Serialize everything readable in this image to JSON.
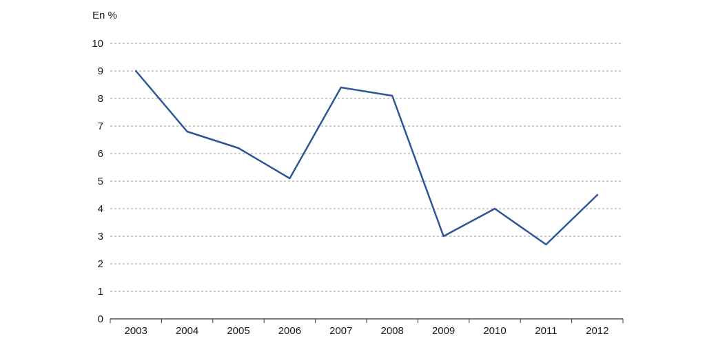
{
  "chart_data": {
    "type": "line",
    "title": "",
    "xlabel": "",
    "ylabel": "En %",
    "categories": [
      "2003",
      "2004",
      "2005",
      "2006",
      "2007",
      "2008",
      "2009",
      "2010",
      "2011",
      "2012"
    ],
    "series": [
      {
        "values": [
          9,
          6.8,
          6.2,
          5.1,
          8.4,
          8.1,
          3.0,
          4.0,
          2.7,
          4.5
        ]
      }
    ],
    "ylim": [
      0,
      10
    ],
    "yticks": [
      "0",
      "1",
      "2",
      "3",
      "4",
      "5",
      "6",
      "7",
      "8",
      "9",
      "10"
    ],
    "grid": "horizontal-dashed",
    "legend": "none",
    "colors": {
      "line": "#2f5597",
      "grid": "#999999",
      "axis": "#333333"
    }
  }
}
